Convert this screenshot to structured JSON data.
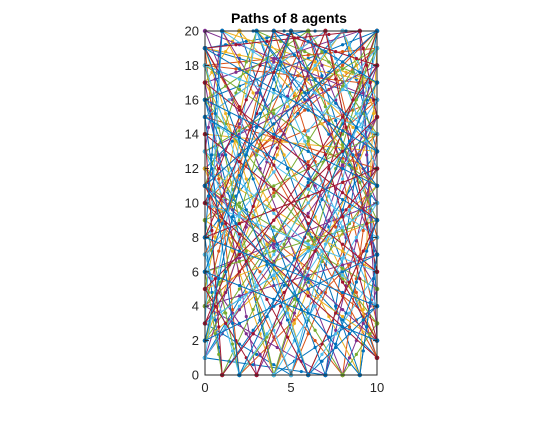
{
  "chart_data": {
    "type": "line",
    "title": "Paths of 8 agents",
    "xlabel": "",
    "ylabel": "",
    "xlim": [
      0,
      10
    ],
    "ylim": [
      0,
      20
    ],
    "xticks": [
      0,
      5,
      10
    ],
    "yticks": [
      0,
      2,
      4,
      6,
      8,
      10,
      12,
      14,
      16,
      18,
      20
    ],
    "grid": false,
    "legend": "none",
    "series": [
      {
        "color": "#0072BD",
        "points": [
          [
            2,
            20
          ],
          [
            9,
            0
          ],
          [
            10,
            7
          ],
          [
            6,
            20
          ],
          [
            0,
            19
          ],
          [
            10,
            16
          ],
          [
            5,
            0
          ],
          [
            0,
            3
          ],
          [
            10,
            10
          ],
          [
            3,
            20
          ],
          [
            10,
            1
          ],
          [
            0,
            12
          ],
          [
            8,
            20
          ],
          [
            10,
            13
          ],
          [
            1,
            0
          ],
          [
            0,
            8
          ],
          [
            9,
            20
          ],
          [
            10,
            4
          ],
          [
            4,
            0
          ],
          [
            0,
            16
          ],
          [
            10,
            20
          ],
          [
            7,
            0
          ],
          [
            0,
            1
          ],
          [
            10,
            18
          ]
        ]
      },
      {
        "color": "#D95319",
        "points": [
          [
            9,
            17
          ],
          [
            0,
            18
          ],
          [
            10,
            19
          ],
          [
            3,
            13
          ],
          [
            10,
            16
          ],
          [
            0,
            7
          ],
          [
            6,
            20
          ],
          [
            10,
            3
          ],
          [
            0,
            11
          ],
          [
            5,
            0
          ],
          [
            10,
            12
          ],
          [
            0,
            15
          ],
          [
            7,
            20
          ],
          [
            10,
            8
          ],
          [
            2,
            0
          ],
          [
            0,
            19
          ],
          [
            10,
            1
          ],
          [
            4,
            20
          ],
          [
            0,
            4
          ],
          [
            10,
            14
          ],
          [
            8,
            0
          ],
          [
            0,
            10
          ],
          [
            10,
            20
          ]
        ]
      },
      {
        "color": "#EDB120",
        "points": [
          [
            0,
            14
          ],
          [
            10,
            13
          ],
          [
            3,
            20
          ],
          [
            0,
            5
          ],
          [
            10,
            9
          ],
          [
            6,
            0
          ],
          [
            0,
            19
          ],
          [
            10,
            17
          ],
          [
            1,
            20
          ],
          [
            10,
            2
          ],
          [
            0,
            9
          ],
          [
            8,
            20
          ],
          [
            10,
            15
          ],
          [
            4,
            0
          ],
          [
            0,
            12
          ],
          [
            10,
            6
          ],
          [
            7,
            20
          ],
          [
            0,
            2
          ],
          [
            10,
            11
          ],
          [
            2,
            20
          ],
          [
            0,
            17
          ],
          [
            9,
            0
          ],
          [
            10,
            19
          ]
        ]
      },
      {
        "color": "#7E2F8E",
        "points": [
          [
            10,
            16
          ],
          [
            0,
            20
          ],
          [
            8,
            0
          ],
          [
            10,
            5
          ],
          [
            1,
            20
          ],
          [
            0,
            13
          ],
          [
            10,
            18
          ],
          [
            4,
            0
          ],
          [
            0,
            6
          ],
          [
            10,
            10
          ],
          [
            6,
            20
          ],
          [
            0,
            1
          ],
          [
            10,
            15
          ],
          [
            3,
            0
          ],
          [
            0,
            17
          ],
          [
            9,
            20
          ],
          [
            10,
            2
          ],
          [
            0,
            11
          ],
          [
            5,
            20
          ],
          [
            10,
            7
          ],
          [
            0,
            4
          ],
          [
            7,
            0
          ],
          [
            10,
            13
          ]
        ]
      },
      {
        "color": "#77AC30",
        "points": [
          [
            0,
            4
          ],
          [
            10,
            20
          ],
          [
            4,
            0
          ],
          [
            0,
            18
          ],
          [
            10,
            11
          ],
          [
            2,
            0
          ],
          [
            0,
            9
          ],
          [
            10,
            14
          ],
          [
            6,
            20
          ],
          [
            0,
            16
          ],
          [
            10,
            3
          ],
          [
            8,
            0
          ],
          [
            0,
            13
          ],
          [
            10,
            19
          ],
          [
            1,
            0
          ],
          [
            0,
            6
          ],
          [
            10,
            9
          ],
          [
            5,
            20
          ],
          [
            0,
            2
          ],
          [
            10,
            17
          ],
          [
            3,
            20
          ],
          [
            0,
            11
          ],
          [
            10,
            5
          ]
        ]
      },
      {
        "color": "#4DBEEE",
        "points": [
          [
            10,
            8
          ],
          [
            0,
            15
          ],
          [
            7,
            20
          ],
          [
            10,
            12
          ],
          [
            2,
            0
          ],
          [
            0,
            7
          ],
          [
            10,
            19
          ],
          [
            5,
            0
          ],
          [
            0,
            13
          ],
          [
            10,
            4
          ],
          [
            3,
            20
          ],
          [
            0,
            1
          ],
          [
            10,
            16
          ],
          [
            8,
            20
          ],
          [
            0,
            10
          ],
          [
            10,
            6
          ],
          [
            6,
            0
          ],
          [
            0,
            18
          ],
          [
            10,
            14
          ],
          [
            1,
            20
          ],
          [
            0,
            3
          ],
          [
            10,
            10
          ],
          [
            4,
            0
          ]
        ]
      },
      {
        "color": "#A2142F",
        "points": [
          [
            0,
            17
          ],
          [
            10,
            9
          ],
          [
            6,
            0
          ],
          [
            0,
            11
          ],
          [
            10,
            20
          ],
          [
            3,
            0
          ],
          [
            0,
            5
          ],
          [
            10,
            15
          ],
          [
            9,
            20
          ],
          [
            0,
            19
          ],
          [
            10,
            2
          ],
          [
            5,
            20
          ],
          [
            0,
            8
          ],
          [
            10,
            12
          ],
          [
            1,
            0
          ],
          [
            0,
            14
          ],
          [
            10,
            6
          ],
          [
            7,
            20
          ],
          [
            0,
            3
          ],
          [
            10,
            18
          ],
          [
            4,
            20
          ],
          [
            0,
            10
          ],
          [
            10,
            1
          ]
        ]
      },
      {
        "color": "#0072BD",
        "points": [
          [
            10,
            2
          ],
          [
            0,
            6
          ],
          [
            5,
            20
          ],
          [
            10,
            17
          ],
          [
            2,
            0
          ],
          [
            0,
            15
          ],
          [
            10,
            9
          ],
          [
            7,
            0
          ],
          [
            0,
            19
          ],
          [
            10,
            13
          ],
          [
            4,
            20
          ],
          [
            0,
            2
          ],
          [
            10,
            7
          ],
          [
            9,
            0
          ],
          [
            0,
            11
          ],
          [
            10,
            20
          ],
          [
            1,
            20
          ],
          [
            0,
            8
          ],
          [
            10,
            4
          ],
          [
            6,
            0
          ],
          [
            0,
            16
          ],
          [
            10,
            11
          ],
          [
            3,
            20
          ]
        ]
      }
    ]
  }
}
